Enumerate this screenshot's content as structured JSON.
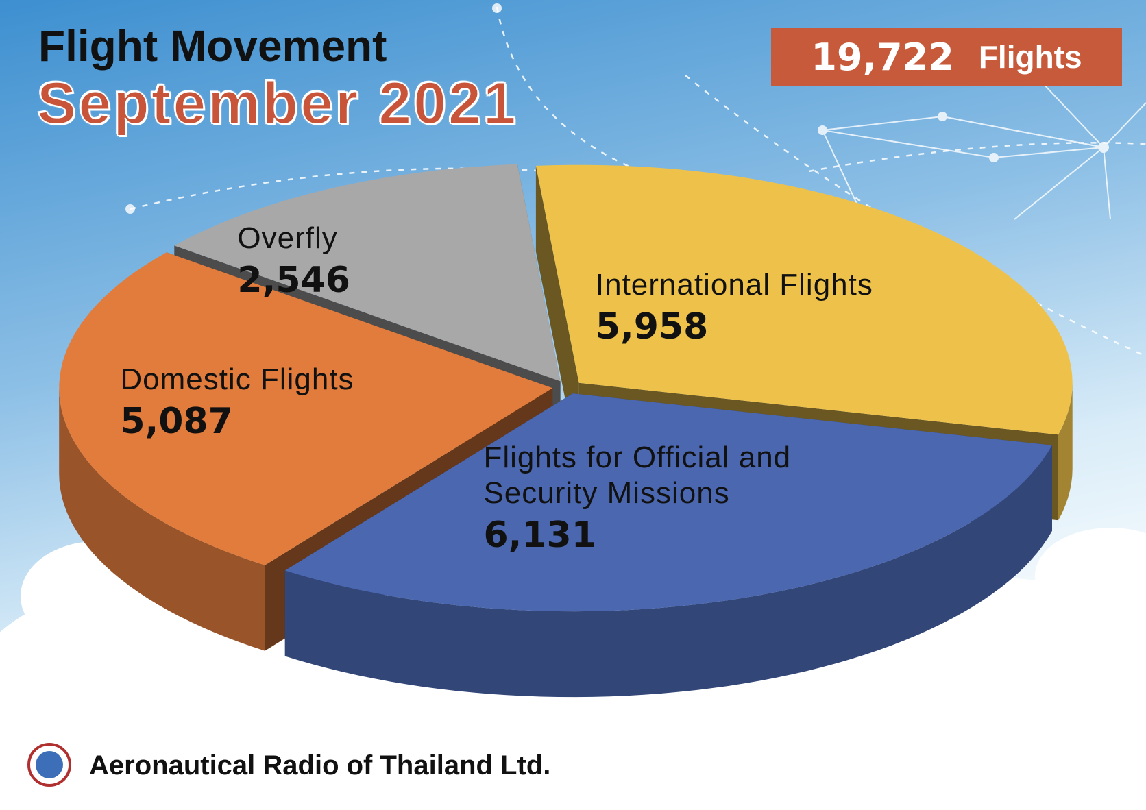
{
  "chart_data": {
    "type": "pie3d",
    "title": "Flight Movement",
    "subtitle": "September 2021",
    "total": {
      "value": 19722,
      "label": "19,722"
    },
    "total_unit": "Flights",
    "categories": [
      "International Flights",
      "Flights for Official and Security Missions",
      "Domestic Flights",
      "Overfly"
    ],
    "values": [
      5958,
      6131,
      5087,
      2546
    ],
    "value_labels": [
      "5,958",
      "6,131",
      "5,087",
      "2,546"
    ],
    "colors": [
      "#eec24a",
      "#4a67b0",
      "#e27c3c",
      "#a8a8a8"
    ],
    "footer": "Aeronautical Radio of Thailand Ltd."
  }
}
